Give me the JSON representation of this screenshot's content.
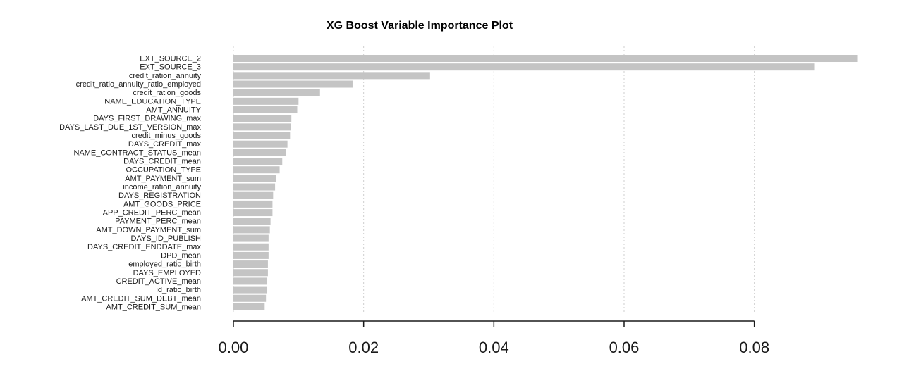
{
  "chart_data": {
    "type": "bar",
    "orientation": "horizontal",
    "title": "XG Boost Variable  Importance Plot",
    "xlabel": "",
    "ylabel": "",
    "xlim": [
      0,
      0.0965
    ],
    "xticks": [
      0.0,
      0.02,
      0.04,
      0.06,
      0.08
    ],
    "xtick_labels": [
      "0.00",
      "0.02",
      "0.04",
      "0.06",
      "0.08"
    ],
    "grid": "vertical dotted",
    "bar_color": "#c4c4c4",
    "categories": [
      "EXT_SOURCE_2",
      "EXT_SOURCE_3",
      "credit_ration_annuity",
      "credit_ratio_annuity_ratio_employed",
      "credit_ration_goods",
      "NAME_EDUCATION_TYPE",
      "AMT_ANNUITY",
      "DAYS_FIRST_DRAWING_max",
      "DAYS_LAST_DUE_1ST_VERSION_max",
      "credit_minus_goods",
      "DAYS_CREDIT_max",
      "NAME_CONTRACT_STATUS_mean",
      "DAYS_CREDIT_mean",
      "OCCUPATION_TYPE",
      "AMT_PAYMENT_sum",
      "income_ration_annuity",
      "DAYS_REGISTRATION",
      "AMT_GOODS_PRICE",
      "APP_CREDIT_PERC_mean",
      "PAYMENT_PERC_mean",
      "AMT_DOWN_PAYMENT_sum",
      "DAYS_ID_PUBLISH",
      "DAYS_CREDIT_ENDDATE_max",
      "DPD_mean",
      "employed_ratio_birth",
      "DAYS_EMPLOYED",
      "CREDIT_ACTIVE_mean",
      "id_ratio_birth",
      "AMT_CREDIT_SUM_DEBT_mean",
      "AMT_CREDIT_SUM_mean"
    ],
    "values": [
      0.0958,
      0.0893,
      0.0302,
      0.0183,
      0.0133,
      0.01,
      0.0098,
      0.0089,
      0.0088,
      0.0087,
      0.0083,
      0.0081,
      0.0075,
      0.0071,
      0.0065,
      0.0064,
      0.0061,
      0.006,
      0.006,
      0.0057,
      0.0056,
      0.0054,
      0.0054,
      0.0054,
      0.0053,
      0.0053,
      0.0052,
      0.0052,
      0.005,
      0.0048
    ]
  }
}
